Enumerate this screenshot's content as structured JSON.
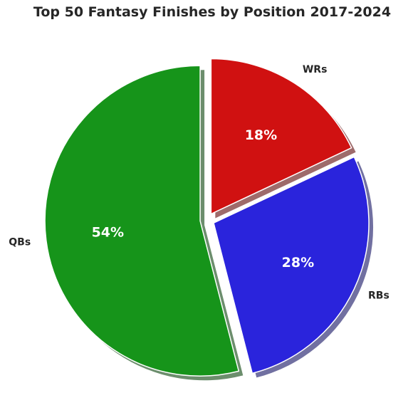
{
  "chart_data": {
    "type": "pie",
    "title": "Top 50 Fantasy Finishes by Position 2017-2024",
    "categories": [
      "QBs",
      "RBs",
      "WRs"
    ],
    "values": [
      54,
      28,
      18
    ],
    "percent_labels": [
      "54%",
      "28%",
      "18%"
    ],
    "colors": [
      "#16941a",
      "#2a24dc",
      "#d01111"
    ],
    "exploded": [
      "QBs",
      "RBs",
      "WRs"
    ],
    "shadow": true,
    "start_angle": "top, counterclockwise"
  }
}
